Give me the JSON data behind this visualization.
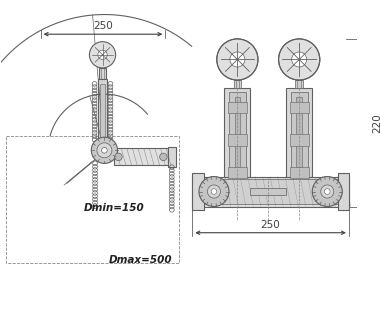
{
  "bg_color": "#ffffff",
  "lc": "#606060",
  "dc": "#404040",
  "tc": "#222222",
  "figsize": [
    3.8,
    3.1
  ],
  "dpi": 100,
  "annotations": {
    "dim_250_left": "250",
    "dim_250_right": "250",
    "dim_220": "220",
    "dmin": "Dmin=150",
    "dmax": "Dmax=500"
  }
}
